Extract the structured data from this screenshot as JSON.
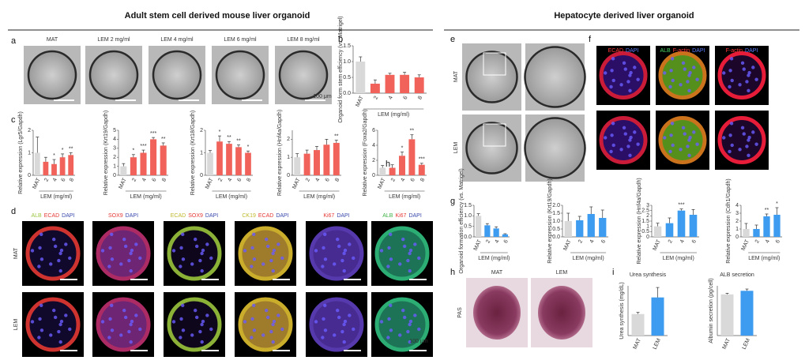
{
  "figure": {
    "left_title": "Adult stem cell derived mouse liver organoid",
    "right_title": "Hepatocyte derived liver organoid",
    "panel_letters": [
      "a",
      "b",
      "c",
      "d",
      "e",
      "f",
      "g",
      "h",
      "i"
    ],
    "a_labels": [
      "MAT",
      "LEM 2 mg/ml",
      "LEM 4 mg/ml",
      "LEM 6 mg/ml",
      "LEM 8 mg/ml"
    ],
    "a_scale": "100 μm",
    "c_stray": "h",
    "d_columns": [
      {
        "words": [
          {
            "text": "ALB",
            "color": "#9bc53d"
          },
          {
            "text": "ECAD",
            "color": "#e53935"
          },
          {
            "text": "DAPI",
            "color": "#3949ab"
          }
        ]
      },
      {
        "words": [
          {
            "text": "SOX9",
            "color": "#e53935"
          },
          {
            "text": "DAPI",
            "color": "#3949ab"
          }
        ]
      },
      {
        "words": [
          {
            "text": "ECAD",
            "color": "#c0b92a"
          },
          {
            "text": "SOX9",
            "color": "#e53935"
          },
          {
            "text": "DAPI",
            "color": "#3949ab"
          }
        ]
      },
      {
        "words": [
          {
            "text": "CK19",
            "color": "#c0b92a"
          },
          {
            "text": "ECAD",
            "color": "#e53935"
          },
          {
            "text": "DAPI",
            "color": "#3949ab"
          }
        ]
      },
      {
        "words": [
          {
            "text": "Ki67",
            "color": "#e53935"
          },
          {
            "text": "DAPI",
            "color": "#3949ab"
          }
        ]
      },
      {
        "words": [
          {
            "text": "ALB",
            "color": "#3cb043"
          },
          {
            "text": "Ki67",
            "color": "#e53935"
          },
          {
            "text": "DAPI",
            "color": "#3949ab"
          }
        ]
      }
    ],
    "d_rows": [
      "MAT",
      "LEM"
    ],
    "d_scale": "100 μm",
    "e_rows": [
      "MAT",
      "LEM"
    ],
    "f_columns": [
      {
        "words": [
          {
            "text": "ECAD",
            "color": "#ff3b3b"
          },
          {
            "text": "DAPI",
            "color": "#5c7cff"
          }
        ]
      },
      {
        "words": [
          {
            "text": "ALB",
            "color": "#4cd964"
          },
          {
            "text": "F-actin",
            "color": "#ff3b3b"
          },
          {
            "text": "DAPI",
            "color": "#5c7cff"
          }
        ]
      },
      {
        "words": [
          {
            "text": "F-actin",
            "color": "#ff3b3b"
          },
          {
            "text": "DAPI",
            "color": "#5c7cff"
          }
        ]
      }
    ],
    "h_columns": [
      "MAT",
      "LEM"
    ],
    "h_row": "PAS"
  },
  "chart_data": [
    {
      "type": "bar",
      "ylabel": "Organoid form stem efficiency (vs. Matrigel)",
      "xlabel": "LEM (mg/ml)",
      "categories": [
        "MAT",
        "2",
        "4",
        "6",
        "8"
      ],
      "values": [
        1.0,
        0.3,
        0.58,
        0.58,
        0.5
      ],
      "errors": [
        0.15,
        0.12,
        0.05,
        0.08,
        0.08
      ],
      "colors": [
        "#d9d9d9",
        "#f0625a",
        "#f0625a",
        "#f0625a",
        "#f0625a"
      ],
      "annotations": [
        null,
        null,
        null,
        null,
        null
      ],
      "ylim": [
        0,
        1.5
      ],
      "yticks": [
        {
          "value": 0,
          "label": "0.0"
        },
        {
          "value": 0.5,
          "label": "0.5"
        },
        {
          "value": 1,
          "label": "1.0"
        },
        {
          "value": 1.5,
          "label": "1.5"
        }
      ]
    },
    {
      "type": "bar",
      "ylabel": "Relative expression (Lgr5/Gapdh)",
      "xlabel": "LEM (mg/ml)",
      "categories": [
        "MAT",
        "2",
        "4",
        "6",
        "8"
      ],
      "values": [
        1.0,
        0.6,
        0.5,
        0.8,
        0.9
      ],
      "errors": [
        0.7,
        0.2,
        0.2,
        0.15,
        0.1
      ],
      "colors": [
        "#d9d9d9",
        "#f0625a",
        "#f0625a",
        "#f0625a",
        "#f0625a"
      ],
      "annotations": [
        null,
        null,
        "*",
        "*",
        "**"
      ],
      "ylim": [
        0,
        2
      ],
      "yticks": [
        0,
        1,
        2
      ]
    },
    {
      "type": "bar",
      "ylabel": "Relative expression (Krt19/Gapdh)",
      "xlabel": "LEM (mg/ml)",
      "categories": [
        "MAT",
        "2",
        "4",
        "6",
        "8"
      ],
      "values": [
        1.0,
        2.0,
        2.5,
        4.0,
        3.3
      ],
      "errors": [
        0.3,
        0.3,
        0.3,
        0.2,
        0.3
      ],
      "colors": [
        "#d9d9d9",
        "#f0625a",
        "#f0625a",
        "#f0625a",
        "#f0625a"
      ],
      "annotations": [
        null,
        "*",
        "***",
        "***",
        "**"
      ],
      "ylim": [
        0,
        5
      ],
      "yticks": [
        0,
        1,
        2,
        3,
        4,
        5
      ]
    },
    {
      "type": "bar",
      "ylabel": "Relative expression (Krt18/Gapdh)",
      "xlabel": "LEM (mg/ml)",
      "categories": [
        "MAT",
        "2",
        "4",
        "6",
        "8"
      ],
      "values": [
        1.0,
        1.5,
        1.4,
        1.25,
        1.0
      ],
      "errors": [
        0.1,
        0.25,
        0.1,
        0.1,
        0.08
      ],
      "colors": [
        "#d9d9d9",
        "#f0625a",
        "#f0625a",
        "#f0625a",
        "#f0625a"
      ],
      "annotations": [
        null,
        "*",
        "**",
        "**",
        "*"
      ],
      "ylim": [
        0,
        2
      ],
      "yticks": [
        0,
        1,
        2
      ]
    },
    {
      "type": "bar",
      "ylabel": "Relative expression (Hnf4a/Gapdh)",
      "xlabel": "LEM (mg/ml)",
      "categories": [
        "MAT",
        "2",
        "4",
        "6",
        "8"
      ],
      "values": [
        1.0,
        1.2,
        1.4,
        1.7,
        1.8
      ],
      "errors": [
        0.2,
        0.2,
        0.2,
        0.3,
        0.15
      ],
      "colors": [
        "#d9d9d9",
        "#f0625a",
        "#f0625a",
        "#f0625a",
        "#f0625a"
      ],
      "annotations": [
        null,
        null,
        null,
        null,
        "**"
      ],
      "ylim": [
        0,
        2.5
      ],
      "yticks": [
        0,
        1,
        2
      ]
    },
    {
      "type": "bar",
      "ylabel": "Relative expression (Foxa2/Gapdh)",
      "xlabel": "LEM (mg/ml)",
      "categories": [
        "MAT",
        "2",
        "4",
        "6",
        "8"
      ],
      "values": [
        1.0,
        1.0,
        2.6,
        4.8,
        1.4
      ],
      "errors": [
        0.3,
        0.4,
        0.5,
        0.6,
        0.2
      ],
      "colors": [
        "#d9d9d9",
        "#f0625a",
        "#f0625a",
        "#f0625a",
        "#f0625a"
      ],
      "annotations": [
        null,
        null,
        "*",
        "**",
        "***"
      ],
      "ylim": [
        0,
        6
      ],
      "yticks": [
        0,
        2,
        4,
        6
      ]
    },
    {
      "type": "bar",
      "ylabel": "Organoid formation efficiency (vs. Matrigel)",
      "xlabel": "LEM (mg/ml)",
      "categories": [
        "MAT",
        "2",
        "4",
        "6"
      ],
      "values": [
        1.0,
        0.55,
        0.4,
        0.12
      ],
      "errors": [
        0.1,
        0.08,
        0.08,
        0.03
      ],
      "colors": [
        "#d9d9d9",
        "#3d9cf0",
        "#3d9cf0",
        "#3d9cf0"
      ],
      "annotations": [
        null,
        null,
        null,
        null
      ],
      "ylim": [
        0,
        1.5
      ],
      "yticks": [
        {
          "value": 0,
          "label": "0.0"
        },
        {
          "value": 0.5,
          "label": "0.5"
        },
        {
          "value": 1,
          "label": "1.0"
        },
        {
          "value": 1.5,
          "label": "1.5"
        }
      ]
    },
    {
      "type": "bar",
      "ylabel": "Relative expression (Krt19/Gapdh)",
      "xlabel": "LEM (mg/ml)",
      "categories": [
        "MAT",
        "2",
        "4",
        "6"
      ],
      "values": [
        1.0,
        1.05,
        1.45,
        1.2
      ],
      "errors": [
        0.5,
        0.25,
        0.45,
        0.5
      ],
      "colors": [
        "#d9d9d9",
        "#3d9cf0",
        "#3d9cf0",
        "#3d9cf0"
      ],
      "annotations": [
        null,
        null,
        null,
        null
      ],
      "ylim": [
        0,
        2
      ],
      "yticks": [
        {
          "value": 0,
          "label": "0.0"
        },
        {
          "value": 0.5,
          "label": "0.5"
        },
        {
          "value": 1,
          "label": "1.0"
        },
        {
          "value": 1.5,
          "label": "1.5"
        },
        {
          "value": 2,
          "label": "2.0"
        }
      ]
    },
    {
      "type": "bar",
      "ylabel": "Relative expression (Hnf4a/Gapdh)",
      "xlabel": "LEM (mg/ml)",
      "categories": [
        "MAT",
        "2",
        "4",
        "6"
      ],
      "values": [
        1.0,
        1.3,
        2.5,
        2.1
      ],
      "errors": [
        0.3,
        0.5,
        0.15,
        0.5
      ],
      "colors": [
        "#d9d9d9",
        "#3d9cf0",
        "#3d9cf0",
        "#3d9cf0"
      ],
      "annotations": [
        null,
        null,
        "***",
        null
      ],
      "ylim": [
        0,
        3
      ],
      "yticks": [
        0,
        0.5,
        1,
        1.5,
        2,
        2.5,
        3
      ]
    },
    {
      "type": "bar",
      "ylabel": "Relative expression (Cdh1/Gapdh)",
      "xlabel": "LEM (mg/ml)",
      "categories": [
        "MAT",
        "2",
        "4",
        "6"
      ],
      "values": [
        1.0,
        1.0,
        2.6,
        2.8
      ],
      "errors": [
        0.7,
        0.5,
        0.3,
        0.9
      ],
      "colors": [
        "#d9d9d9",
        "#3d9cf0",
        "#3d9cf0",
        "#3d9cf0"
      ],
      "annotations": [
        null,
        null,
        "**",
        "*"
      ],
      "ylim": [
        0,
        4
      ],
      "yticks": [
        0,
        1,
        2,
        3,
        4
      ]
    },
    {
      "type": "bar",
      "title": "Urea synthesis",
      "ylabel": "Urea synthesis (mg/dL)",
      "categories": [
        "MAT",
        "LEM"
      ],
      "values": [
        1.3,
        2.3
      ],
      "errors": [
        0.1,
        0.6
      ],
      "colors": [
        "#d9d9d9",
        "#3d9cf0"
      ],
      "annotations": [
        null,
        null
      ],
      "ylim": [
        0,
        3
      ]
    },
    {
      "type": "bar",
      "title": "ALB secretion",
      "ylabel": "Albumin secretion (pg/cell)",
      "categories": [
        "MAT",
        "LEM"
      ],
      "values": [
        5.8,
        6.3
      ],
      "errors": [
        0.15,
        0.25
      ],
      "colors": [
        "#d9d9d9",
        "#3d9cf0"
      ],
      "annotations": [
        null,
        null
      ],
      "ylim": [
        0,
        7
      ]
    }
  ]
}
